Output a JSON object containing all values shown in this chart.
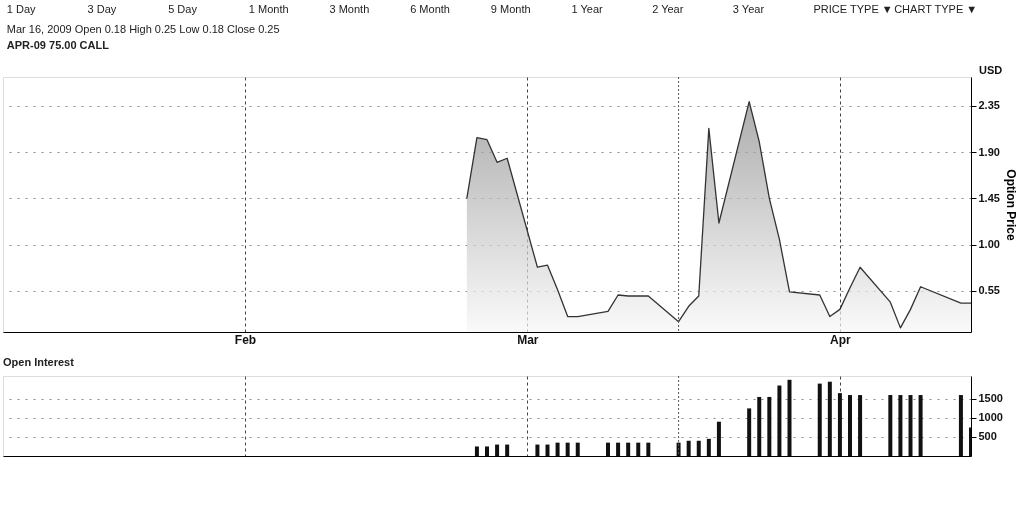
{
  "chart_data": [
    {
      "type": "other",
      "title": "APR-09 75.00 CALL",
      "subtitle": "Mar 16, 2009    Open 0.18    High 0.25    Low 0.18    Close 0.25",
      "annotations": [
        "1 Day",
        "3 Day",
        "5 Day",
        "1 Month",
        "3 Month",
        "6 Month",
        "9 Month",
        "1 Year",
        "2 Year",
        "3 Year",
        "PRICE TYPE ▼",
        "CHART TYPE ▼"
      ]
    },
    {
      "type": "area",
      "ylabel": "Option Price",
      "annotations": [
        "USD"
      ],
      "x": [
        "2009-02-23",
        "2009-02-24",
        "2009-02-25",
        "2009-02-26",
        "2009-02-27",
        "2009-03-02",
        "2009-03-03",
        "2009-03-04",
        "2009-03-05",
        "2009-03-06",
        "2009-03-09",
        "2009-03-10",
        "2009-03-11",
        "2009-03-12",
        "2009-03-13",
        "2009-03-16",
        "2009-03-17",
        "2009-03-18",
        "2009-03-19",
        "2009-03-20",
        "2009-03-23",
        "2009-03-24",
        "2009-03-25",
        "2009-03-26",
        "2009-03-27",
        "2009-03-30",
        "2009-03-31",
        "2009-04-01",
        "2009-04-02",
        "2009-04-03",
        "2009-04-06",
        "2009-04-07",
        "2009-04-08",
        "2009-04-09",
        "2009-04-13",
        "2009-04-14"
      ],
      "series": [
        {
          "color": "#333333",
          "values": [
            1.45,
            2.04,
            2.02,
            1.8,
            1.84,
            0.78,
            0.8,
            0.56,
            0.3,
            0.3,
            0.35,
            0.51,
            0.5,
            0.5,
            0.5,
            0.25,
            0.4,
            0.5,
            2.13,
            1.21,
            2.39,
            2.0,
            1.45,
            1.05,
            0.54,
            0.51,
            0.3,
            0.37,
            0.58,
            0.78,
            0.44,
            0.19,
            0.37,
            0.59,
            0.43,
            0.43
          ]
        }
      ],
      "xlim": [
        "2009-01-08",
        "2009-04-14"
      ],
      "xticks": [
        {
          "value": "2009-02-01",
          "label": "Feb"
        },
        {
          "value": "2009-03-01",
          "label": "Mar"
        },
        {
          "value": "2009-04-01",
          "label": "Apr"
        }
      ],
      "ylim": [
        0.15,
        2.63
      ],
      "yticks": [
        0.55,
        {
          "value": 1.0,
          "label": "1.00"
        },
        1.45,
        {
          "value": 1.9,
          "label": "1.90"
        },
        2.35
      ],
      "grid": true,
      "ref_lines": [
        {
          "axis": "x",
          "value": "2009-03-16",
          "label": null
        }
      ]
    },
    {
      "type": "bar",
      "title": "Open Interest",
      "x": [
        "2009-02-24",
        "2009-02-25",
        "2009-02-26",
        "2009-02-27",
        "2009-03-02",
        "2009-03-03",
        "2009-03-04",
        "2009-03-05",
        "2009-03-06",
        "2009-03-09",
        "2009-03-10",
        "2009-03-11",
        "2009-03-12",
        "2009-03-13",
        "2009-03-16",
        "2009-03-17",
        "2009-03-18",
        "2009-03-19",
        "2009-03-20",
        "2009-03-23",
        "2009-03-24",
        "2009-03-25",
        "2009-03-26",
        "2009-03-27",
        "2009-03-30",
        "2009-03-31",
        "2009-04-01",
        "2009-04-02",
        "2009-04-03",
        "2009-04-06",
        "2009-04-07",
        "2009-04-08",
        "2009-04-09",
        "2009-04-13",
        "2009-04-14"
      ],
      "series": [
        {
          "color": "#111111",
          "values": [
            250,
            250,
            300,
            300,
            300,
            300,
            350,
            350,
            350,
            350,
            350,
            350,
            350,
            350,
            350,
            400,
            400,
            450,
            900,
            1250,
            1550,
            1550,
            1850,
            2000,
            1900,
            1950,
            1650,
            1600,
            1600,
            1600,
            1600,
            1600,
            1600,
            1600,
            750
          ]
        }
      ],
      "xlim": [
        "2009-01-08",
        "2009-04-14"
      ],
      "xticks": [
        {
          "value": "2009-02-01",
          "label": null
        },
        {
          "value": "2009-03-01",
          "label": null
        },
        {
          "value": "2009-04-01",
          "label": null
        }
      ],
      "ylim": [
        0,
        2100
      ],
      "yticks": [
        500,
        1000,
        1500
      ],
      "grid": true,
      "tick_labels": "y",
      "ref_lines": [
        {
          "axis": "x",
          "value": "2009-03-16",
          "label": null
        }
      ]
    }
  ]
}
